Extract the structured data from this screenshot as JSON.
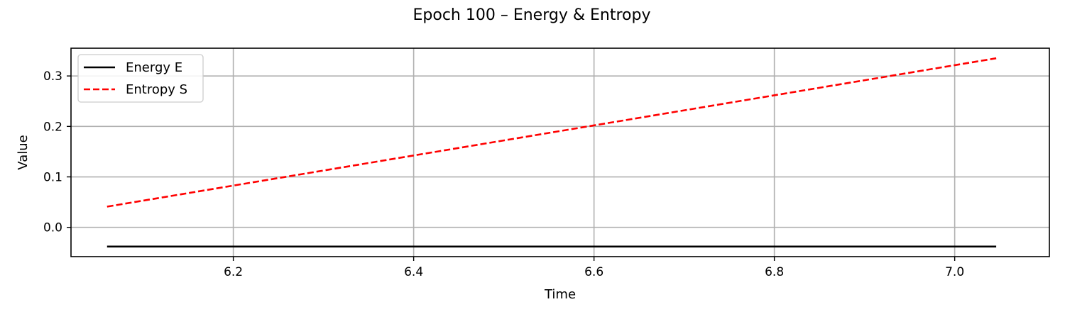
{
  "chart_data": {
    "type": "line",
    "title": "Epoch 100 – Energy & Entropy",
    "xlabel": "Time",
    "ylabel": "Value",
    "xlim": [
      6.02,
      7.105
    ],
    "ylim": [
      -0.058,
      0.355
    ],
    "x_ticks": [
      6.2,
      6.4,
      6.6,
      6.8,
      7.0
    ],
    "x_tick_labels": [
      "6.2",
      "6.4",
      "6.6",
      "6.8",
      "7.0"
    ],
    "y_ticks": [
      0.0,
      0.1,
      0.2,
      0.3
    ],
    "y_tick_labels": [
      "0.0",
      "0.1",
      "0.2",
      "0.3"
    ],
    "grid": true,
    "legend_position": "top-left",
    "series": [
      {
        "name": "Energy E",
        "color": "#000000",
        "line_style": "solid",
        "x": [
          6.06,
          7.046
        ],
        "y": [
          -0.038,
          -0.038
        ]
      },
      {
        "name": "Entropy S",
        "color": "#ff0000",
        "line_style": "dashed",
        "x": [
          6.06,
          7.046
        ],
        "y": [
          0.041,
          0.335
        ]
      }
    ]
  }
}
